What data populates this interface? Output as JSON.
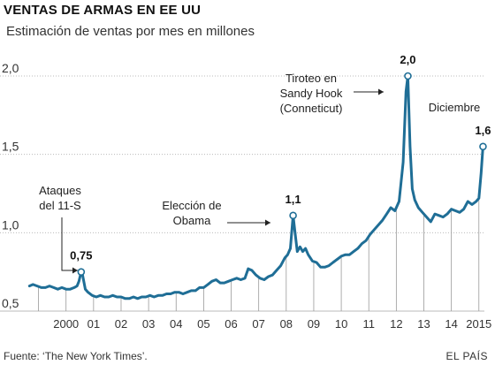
{
  "header": {
    "title": "VENTAS DE ARMAS EN EE UU",
    "subtitle": "Estimación de ventas por mes en millones"
  },
  "footer": {
    "source": "Fuente: ‘The New York Times’.",
    "credit": "EL PAÍS"
  },
  "chart_data": {
    "type": "line",
    "title": "VENTAS DE ARMAS EN EE UU",
    "subtitle": "Estimación de ventas por mes en millones",
    "xlabel": "",
    "ylabel": "",
    "xlim": [
      1999.0,
      2015.7
    ],
    "ylim": [
      0.5,
      2.0
    ],
    "grid": "horizontal",
    "line_color": "#1f6e96",
    "y_ticks": [
      {
        "value": 2.0,
        "label": "2,0"
      },
      {
        "value": 1.5,
        "label": "1,5"
      },
      {
        "value": 1.0,
        "label": "1,0"
      },
      {
        "value": 0.5,
        "label": "0,5"
      }
    ],
    "x_ticks": [
      {
        "value": 2000.0,
        "label": "2000"
      },
      {
        "value": 2001.0,
        "label": "01"
      },
      {
        "value": 2002.0,
        "label": "02"
      },
      {
        "value": 2003.0,
        "label": "03"
      },
      {
        "value": 2004.0,
        "label": "04"
      },
      {
        "value": 2005.0,
        "label": "05"
      },
      {
        "value": 2006.0,
        "label": "06"
      },
      {
        "value": 2007.0,
        "label": "07"
      },
      {
        "value": 2008.0,
        "label": "08"
      },
      {
        "value": 2009.0,
        "label": "09"
      },
      {
        "value": 2010.0,
        "label": "10"
      },
      {
        "value": 2011.0,
        "label": "11"
      },
      {
        "value": 2012.0,
        "label": "12"
      },
      {
        "value": 2013.0,
        "label": "13"
      },
      {
        "value": 2014.0,
        "label": "14"
      },
      {
        "value": 2015.0,
        "label": "2015"
      }
    ],
    "series": [
      {
        "x": [
          1999.17,
          1999.3,
          1999.45,
          1999.6,
          1999.75,
          1999.9,
          2000.05,
          2000.2,
          2000.35,
          2000.5,
          2000.65,
          2000.8,
          2000.9,
          2000.97,
          2001.05,
          2001.1,
          2001.2,
          2001.3,
          2001.45,
          2001.6,
          2001.75,
          2001.9,
          2002.05,
          2002.2,
          2002.35,
          2002.5,
          2002.65,
          2002.8,
          2002.95,
          2003.1,
          2003.25,
          2003.4,
          2003.55,
          2003.7,
          2003.85,
          2004.0,
          2004.15,
          2004.3,
          2004.45,
          2004.6,
          2004.75,
          2004.9,
          2005.05,
          2005.2,
          2005.35,
          2005.5,
          2005.65,
          2005.8,
          2005.95,
          2006.1,
          2006.25,
          2006.4,
          2006.55,
          2006.7,
          2006.85,
          2007.0,
          2007.12,
          2007.25,
          2007.4,
          2007.55,
          2007.7,
          2007.85,
          2008.0,
          2008.15,
          2008.3,
          2008.45,
          2008.55,
          2008.65,
          2008.75,
          2008.82,
          2008.9,
          2009.0,
          2009.1,
          2009.2,
          2009.3,
          2009.45,
          2009.6,
          2009.75,
          2009.9,
          2010.05,
          2010.2,
          2010.35,
          2010.5,
          2010.65,
          2010.8,
          2010.95,
          2011.1,
          2011.25,
          2011.4,
          2011.55,
          2011.7,
          2011.85,
          2012.0,
          2012.15,
          2012.3,
          2012.45,
          2012.6,
          2012.75,
          2012.85,
          2012.92,
          2013.0,
          2013.08,
          2013.17,
          2013.3,
          2013.45,
          2013.6,
          2013.75,
          2013.9,
          2014.05,
          2014.2,
          2014.35,
          2014.5,
          2014.65,
          2014.8,
          2014.95,
          2015.1,
          2015.25,
          2015.4,
          2015.5,
          2015.58,
          2015.65
        ],
        "y": [
          0.66,
          0.67,
          0.66,
          0.65,
          0.65,
          0.66,
          0.65,
          0.64,
          0.65,
          0.64,
          0.64,
          0.65,
          0.66,
          0.69,
          0.75,
          0.73,
          0.64,
          0.62,
          0.6,
          0.59,
          0.6,
          0.59,
          0.59,
          0.6,
          0.59,
          0.59,
          0.58,
          0.58,
          0.59,
          0.58,
          0.59,
          0.59,
          0.6,
          0.59,
          0.6,
          0.6,
          0.61,
          0.61,
          0.62,
          0.62,
          0.61,
          0.62,
          0.63,
          0.63,
          0.65,
          0.65,
          0.67,
          0.69,
          0.7,
          0.68,
          0.68,
          0.69,
          0.7,
          0.71,
          0.7,
          0.71,
          0.77,
          0.76,
          0.73,
          0.71,
          0.7,
          0.72,
          0.73,
          0.76,
          0.79,
          0.84,
          0.86,
          0.9,
          1.11,
          1.0,
          0.88,
          0.91,
          0.88,
          0.9,
          0.86,
          0.82,
          0.81,
          0.78,
          0.78,
          0.79,
          0.81,
          0.83,
          0.85,
          0.86,
          0.86,
          0.88,
          0.9,
          0.93,
          0.95,
          0.99,
          1.02,
          1.05,
          1.08,
          1.12,
          1.16,
          1.14,
          1.2,
          1.45,
          1.9,
          2.0,
          1.55,
          1.28,
          1.21,
          1.16,
          1.13,
          1.1,
          1.07,
          1.12,
          1.11,
          1.1,
          1.12,
          1.15,
          1.14,
          1.13,
          1.15,
          1.2,
          1.18,
          1.2,
          1.22,
          1.38,
          1.55
        ]
      }
    ],
    "data_labels": [
      {
        "x": 2001.05,
        "y": 0.75,
        "label": "0,75"
      },
      {
        "x": 2008.75,
        "y": 1.11,
        "label": "1,1"
      },
      {
        "x": 2012.92,
        "y": 2.0,
        "label": "2,0"
      },
      {
        "x": 2015.65,
        "y": 1.55,
        "label": "1,6"
      }
    ],
    "annotations": [
      {
        "lines": [
          "Ataques",
          "del 11-S"
        ]
      },
      {
        "lines": [
          "Elección de",
          "Obama"
        ]
      },
      {
        "lines": [
          "Tiroteo en",
          "Sandy Hook",
          "(Conneticut)"
        ]
      },
      {
        "lines": [
          "Diciembre"
        ]
      }
    ]
  }
}
